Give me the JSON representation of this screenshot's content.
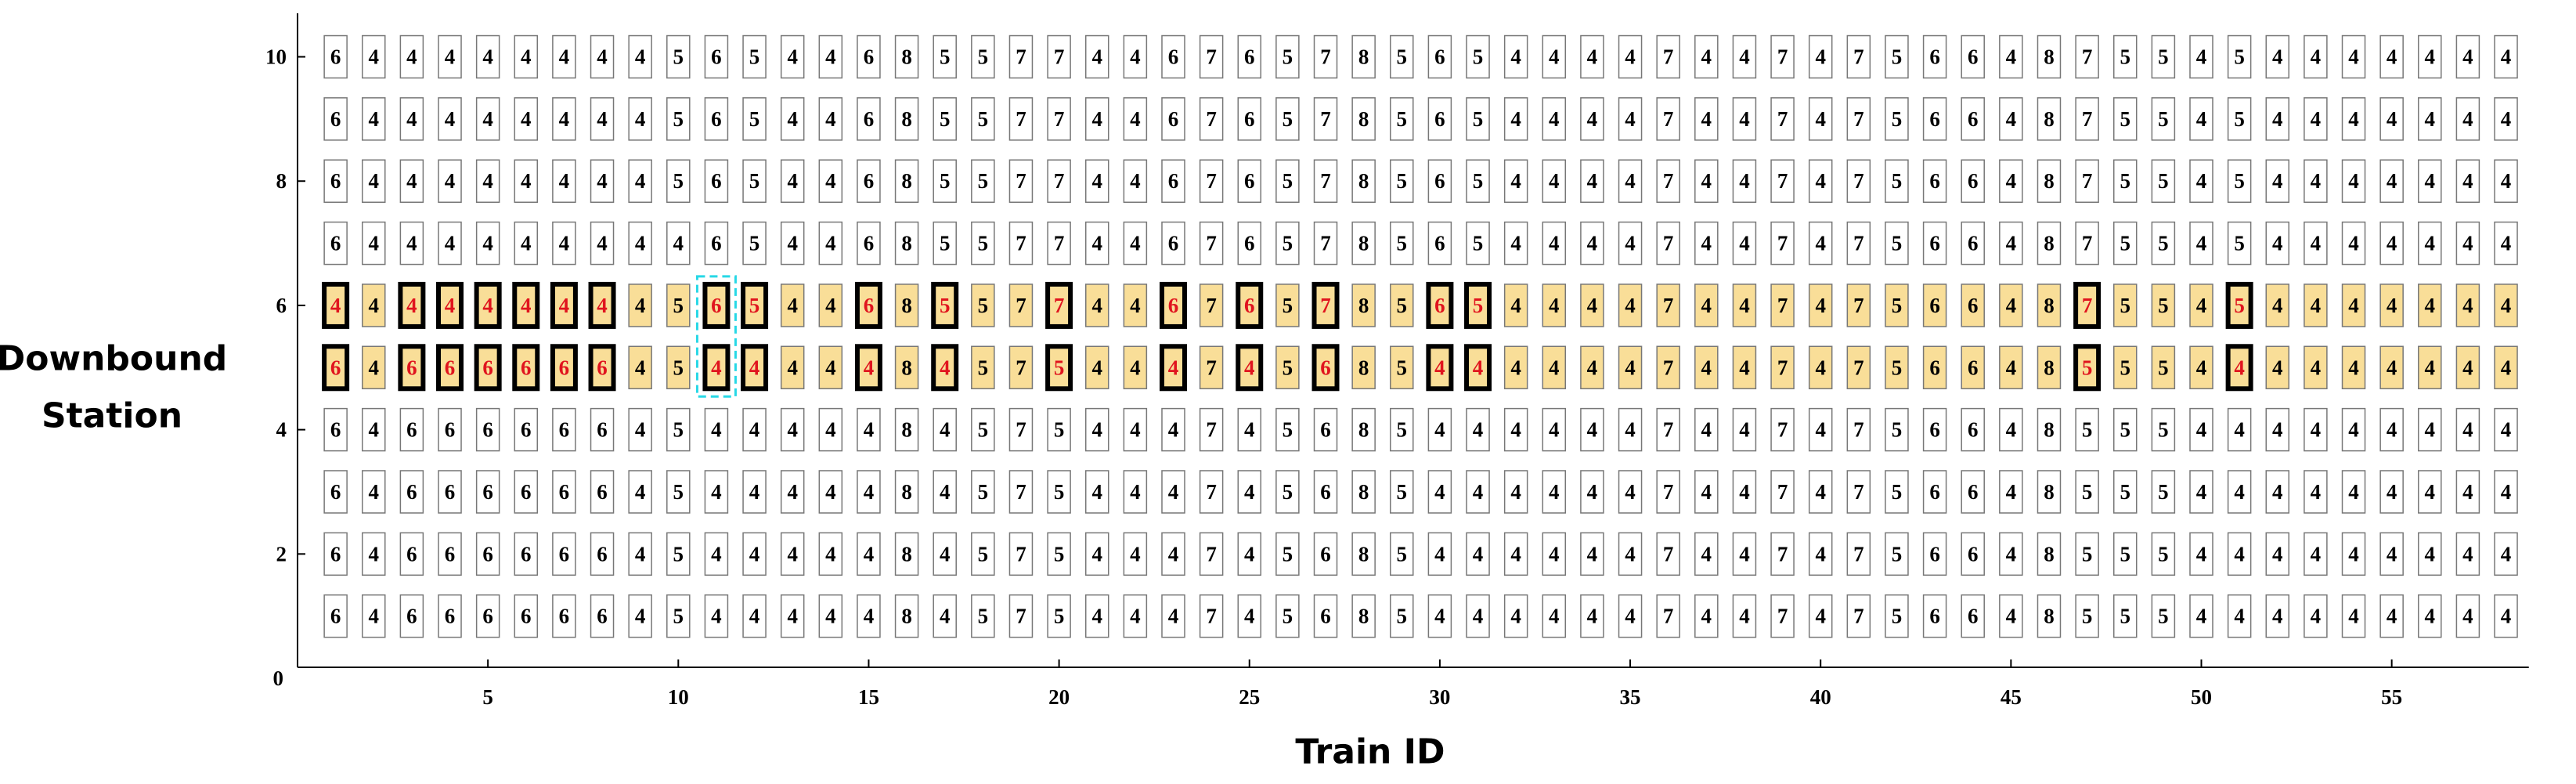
{
  "chart_data": {
    "type": "grid",
    "xlabel": "Train ID",
    "ylabel": [
      "Downbound",
      "Station"
    ],
    "origin_label": "0",
    "xlim": [
      0,
      58.6
    ],
    "xticks": [
      5,
      10,
      15,
      20,
      25,
      30,
      35,
      40,
      45,
      50,
      55
    ],
    "ylim": [
      0,
      10.7
    ],
    "yticks": [
      2,
      4,
      6,
      8,
      10
    ],
    "trains": [
      1,
      2,
      3,
      4,
      5,
      6,
      7,
      8,
      9,
      10,
      11,
      12,
      13,
      14,
      15,
      16,
      17,
      18,
      19,
      20,
      21,
      22,
      23,
      24,
      25,
      26,
      27,
      28,
      29,
      30,
      31,
      32,
      33,
      34,
      35,
      36,
      37,
      38,
      39,
      40,
      41,
      42,
      43,
      44,
      45,
      46,
      47,
      48,
      49,
      50,
      51,
      52,
      53,
      54,
      55,
      56,
      57,
      58
    ],
    "rows": [
      {
        "station": 10,
        "values": [
          6,
          4,
          4,
          4,
          4,
          4,
          4,
          4,
          4,
          5,
          6,
          5,
          4,
          4,
          6,
          8,
          5,
          5,
          7,
          7,
          4,
          4,
          6,
          7,
          6,
          5,
          7,
          8,
          5,
          6,
          5,
          4,
          4,
          4,
          4,
          7,
          4,
          4,
          7,
          4,
          7,
          5,
          6,
          6,
          4,
          8,
          7,
          5,
          5,
          4,
          5,
          4,
          4,
          4,
          4,
          4,
          4,
          4
        ]
      },
      {
        "station": 9,
        "values": [
          6,
          4,
          4,
          4,
          4,
          4,
          4,
          4,
          4,
          5,
          6,
          5,
          4,
          4,
          6,
          8,
          5,
          5,
          7,
          7,
          4,
          4,
          6,
          7,
          6,
          5,
          7,
          8,
          5,
          6,
          5,
          4,
          4,
          4,
          4,
          7,
          4,
          4,
          7,
          4,
          7,
          5,
          6,
          6,
          4,
          8,
          7,
          5,
          5,
          4,
          5,
          4,
          4,
          4,
          4,
          4,
          4,
          4
        ]
      },
      {
        "station": 8,
        "values": [
          6,
          4,
          4,
          4,
          4,
          4,
          4,
          4,
          4,
          5,
          6,
          5,
          4,
          4,
          6,
          8,
          5,
          5,
          7,
          7,
          4,
          4,
          6,
          7,
          6,
          5,
          7,
          8,
          5,
          6,
          5,
          4,
          4,
          4,
          4,
          7,
          4,
          4,
          7,
          4,
          7,
          5,
          6,
          6,
          4,
          8,
          7,
          5,
          5,
          4,
          5,
          4,
          4,
          4,
          4,
          4,
          4,
          4
        ]
      },
      {
        "station": 7,
        "values": [
          6,
          4,
          4,
          4,
          4,
          4,
          4,
          4,
          4,
          4,
          6,
          5,
          4,
          4,
          6,
          8,
          5,
          5,
          7,
          7,
          4,
          4,
          6,
          7,
          6,
          5,
          7,
          8,
          5,
          6,
          5,
          4,
          4,
          4,
          4,
          7,
          4,
          4,
          7,
          4,
          7,
          5,
          6,
          6,
          4,
          8,
          7,
          5,
          5,
          4,
          5,
          4,
          4,
          4,
          4,
          4,
          4,
          4
        ]
      },
      {
        "station": 6,
        "values": [
          4,
          4,
          4,
          4,
          4,
          4,
          4,
          4,
          4,
          5,
          6,
          5,
          4,
          4,
          6,
          8,
          5,
          5,
          7,
          7,
          4,
          4,
          6,
          7,
          6,
          5,
          7,
          8,
          5,
          6,
          5,
          4,
          4,
          4,
          4,
          7,
          4,
          4,
          7,
          4,
          7,
          5,
          6,
          6,
          4,
          8,
          7,
          5,
          5,
          4,
          5,
          4,
          4,
          4,
          4,
          4,
          4,
          4
        ]
      },
      {
        "station": 5,
        "values": [
          6,
          4,
          6,
          6,
          6,
          6,
          6,
          6,
          4,
          5,
          4,
          4,
          4,
          4,
          4,
          8,
          4,
          5,
          7,
          5,
          4,
          4,
          4,
          7,
          4,
          5,
          6,
          8,
          5,
          4,
          4,
          4,
          4,
          4,
          4,
          7,
          4,
          4,
          7,
          4,
          7,
          5,
          6,
          6,
          4,
          8,
          5,
          5,
          5,
          4,
          4,
          4,
          4,
          4,
          4,
          4,
          4,
          4
        ]
      },
      {
        "station": 4,
        "values": [
          6,
          4,
          6,
          6,
          6,
          6,
          6,
          6,
          4,
          5,
          4,
          4,
          4,
          4,
          4,
          8,
          4,
          5,
          7,
          5,
          4,
          4,
          4,
          7,
          4,
          5,
          6,
          8,
          5,
          4,
          4,
          4,
          4,
          4,
          4,
          7,
          4,
          4,
          7,
          4,
          7,
          5,
          6,
          6,
          4,
          8,
          5,
          5,
          5,
          4,
          4,
          4,
          4,
          4,
          4,
          4,
          4,
          4
        ]
      },
      {
        "station": 3,
        "values": [
          6,
          4,
          6,
          6,
          6,
          6,
          6,
          6,
          4,
          5,
          4,
          4,
          4,
          4,
          4,
          8,
          4,
          5,
          7,
          5,
          4,
          4,
          4,
          7,
          4,
          5,
          6,
          8,
          5,
          4,
          4,
          4,
          4,
          4,
          4,
          7,
          4,
          4,
          7,
          4,
          7,
          5,
          6,
          6,
          4,
          8,
          5,
          5,
          5,
          4,
          4,
          4,
          4,
          4,
          4,
          4,
          4,
          4
        ]
      },
      {
        "station": 2,
        "values": [
          6,
          4,
          6,
          6,
          6,
          6,
          6,
          6,
          4,
          5,
          4,
          4,
          4,
          4,
          4,
          8,
          4,
          5,
          7,
          5,
          4,
          4,
          4,
          7,
          4,
          5,
          6,
          8,
          5,
          4,
          4,
          4,
          4,
          4,
          4,
          7,
          4,
          4,
          7,
          4,
          7,
          5,
          6,
          6,
          4,
          8,
          5,
          5,
          5,
          4,
          4,
          4,
          4,
          4,
          4,
          4,
          4,
          4
        ]
      },
      {
        "station": 1,
        "values": [
          6,
          4,
          6,
          6,
          6,
          6,
          6,
          6,
          4,
          5,
          4,
          4,
          4,
          4,
          4,
          8,
          4,
          5,
          7,
          5,
          4,
          4,
          4,
          7,
          4,
          5,
          6,
          8,
          5,
          4,
          4,
          4,
          4,
          4,
          4,
          7,
          4,
          4,
          7,
          4,
          7,
          5,
          6,
          6,
          4,
          8,
          5,
          5,
          5,
          4,
          4,
          4,
          4,
          4,
          4,
          4,
          4,
          4
        ]
      }
    ],
    "highlight_stations": [
      6,
      5
    ],
    "highlight_color": "#f9de98",
    "boxed_trains": [
      1,
      3,
      4,
      5,
      6,
      7,
      8,
      11,
      12,
      15,
      17,
      20,
      23,
      25,
      27,
      30,
      31,
      47,
      51
    ],
    "boxed_text_color": "#e0141e",
    "selected_train": 11,
    "selected_color": "#27d8e6"
  }
}
